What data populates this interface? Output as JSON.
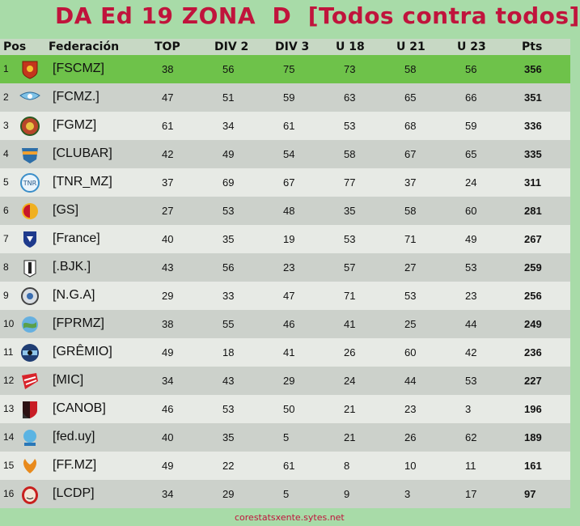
{
  "title": "DA Ed 19 ZONA  D  [Todos contra todos]",
  "columns": {
    "pos": "Pos",
    "fed": "Federación",
    "top": "TOP",
    "div2": "DIV 2",
    "div3": "DIV 3",
    "u18": "U 18",
    "u21": "U 21",
    "u23": "U 23",
    "pts": "Pts"
  },
  "rows": [
    {
      "pos": "1",
      "fed": "[FSCMZ]",
      "top": "38",
      "div2": "56",
      "div3": "75",
      "u18": "73",
      "u21": "58",
      "u23": "56",
      "pts": "356",
      "logo": "red-shield-crest"
    },
    {
      "pos": "2",
      "fed": "[FCMZ.]",
      "top": "47",
      "div2": "51",
      "div3": "59",
      "u18": "63",
      "u21": "65",
      "u23": "66",
      "pts": "351",
      "logo": "blue-wing-crest"
    },
    {
      "pos": "3",
      "fed": "[FGMZ]",
      "top": "61",
      "div2": "34",
      "div3": "61",
      "u18": "53",
      "u21": "68",
      "u23": "59",
      "pts": "336",
      "logo": "round-ornate-crest"
    },
    {
      "pos": "4",
      "fed": "[CLUBAR]",
      "top": "42",
      "div2": "49",
      "div3": "54",
      "u18": "58",
      "u21": "67",
      "u23": "65",
      "pts": "335",
      "logo": "orange-blue-crest"
    },
    {
      "pos": "5",
      "fed": "[TNR_MZ]",
      "top": "37",
      "div2": "69",
      "div3": "67",
      "u18": "77",
      "u21": "37",
      "u23": "24",
      "pts": "311",
      "logo": "tnr-circle-badge"
    },
    {
      "pos": "6",
      "fed": "[GS]",
      "top": "27",
      "div2": "53",
      "div3": "48",
      "u18": "35",
      "u21": "58",
      "u23": "60",
      "pts": "281",
      "logo": "galatasaray-crest"
    },
    {
      "pos": "7",
      "fed": "[France]",
      "top": "40",
      "div2": "35",
      "div3": "19",
      "u18": "53",
      "u21": "71",
      "u23": "49",
      "pts": "267",
      "logo": "france-shield"
    },
    {
      "pos": "8",
      "fed": "[.BJK.]",
      "top": "43",
      "div2": "56",
      "div3": "23",
      "u18": "57",
      "u21": "27",
      "u23": "53",
      "pts": "259",
      "logo": "besiktas-crest"
    },
    {
      "pos": "9",
      "fed": "[N.G.A]",
      "top": "29",
      "div2": "33",
      "div3": "47",
      "u18": "71",
      "u21": "53",
      "u23": "23",
      "pts": "256",
      "logo": "silver-round-crest"
    },
    {
      "pos": "10",
      "fed": "[FPRMZ]",
      "top": "38",
      "div2": "55",
      "div3": "46",
      "u18": "41",
      "u21": "25",
      "u23": "44",
      "pts": "249",
      "logo": "globe-crest"
    },
    {
      "pos": "11",
      "fed": "[GRÊMIO]",
      "top": "49",
      "div2": "18",
      "div3": "41",
      "u18": "26",
      "u21": "60",
      "u23": "42",
      "pts": "236",
      "logo": "gremio-crest"
    },
    {
      "pos": "12",
      "fed": "[MIC]",
      "top": "34",
      "div2": "43",
      "div3": "29",
      "u18": "24",
      "u21": "44",
      "u23": "53",
      "pts": "227",
      "logo": "red-stripe-crest"
    },
    {
      "pos": "13",
      "fed": "[CANOB]",
      "top": "46",
      "div2": "53",
      "div3": "50",
      "u18": "21",
      "u21": "23",
      "u23": "3",
      "pts": "196",
      "logo": "newells-shield"
    },
    {
      "pos": "14",
      "fed": "[fed.uy]",
      "top": "40",
      "div2": "35",
      "div3": "5",
      "u18": "21",
      "u21": "26",
      "u23": "62",
      "pts": "189",
      "logo": "uruguay-crest"
    },
    {
      "pos": "15",
      "fed": "[FF.MZ]",
      "top": "49",
      "div2": "22",
      "div3": "61",
      "u18": "8",
      "u21": "10",
      "u23": "11",
      "pts": "161",
      "logo": "phoenix-crest"
    },
    {
      "pos": "16",
      "fed": "[LCDP]",
      "top": "34",
      "div2": "29",
      "div3": "5",
      "u18": "9",
      "u21": "3",
      "u23": "17",
      "pts": "97",
      "logo": "dali-mask"
    }
  ],
  "footer": "corestatsxente.sytes.net",
  "colors": {
    "title": "#c0143c",
    "background": "#a8dba8",
    "leader_row": "#6ec24a",
    "row_light": "#e7eae5",
    "row_dark": "#ccd1cb"
  }
}
